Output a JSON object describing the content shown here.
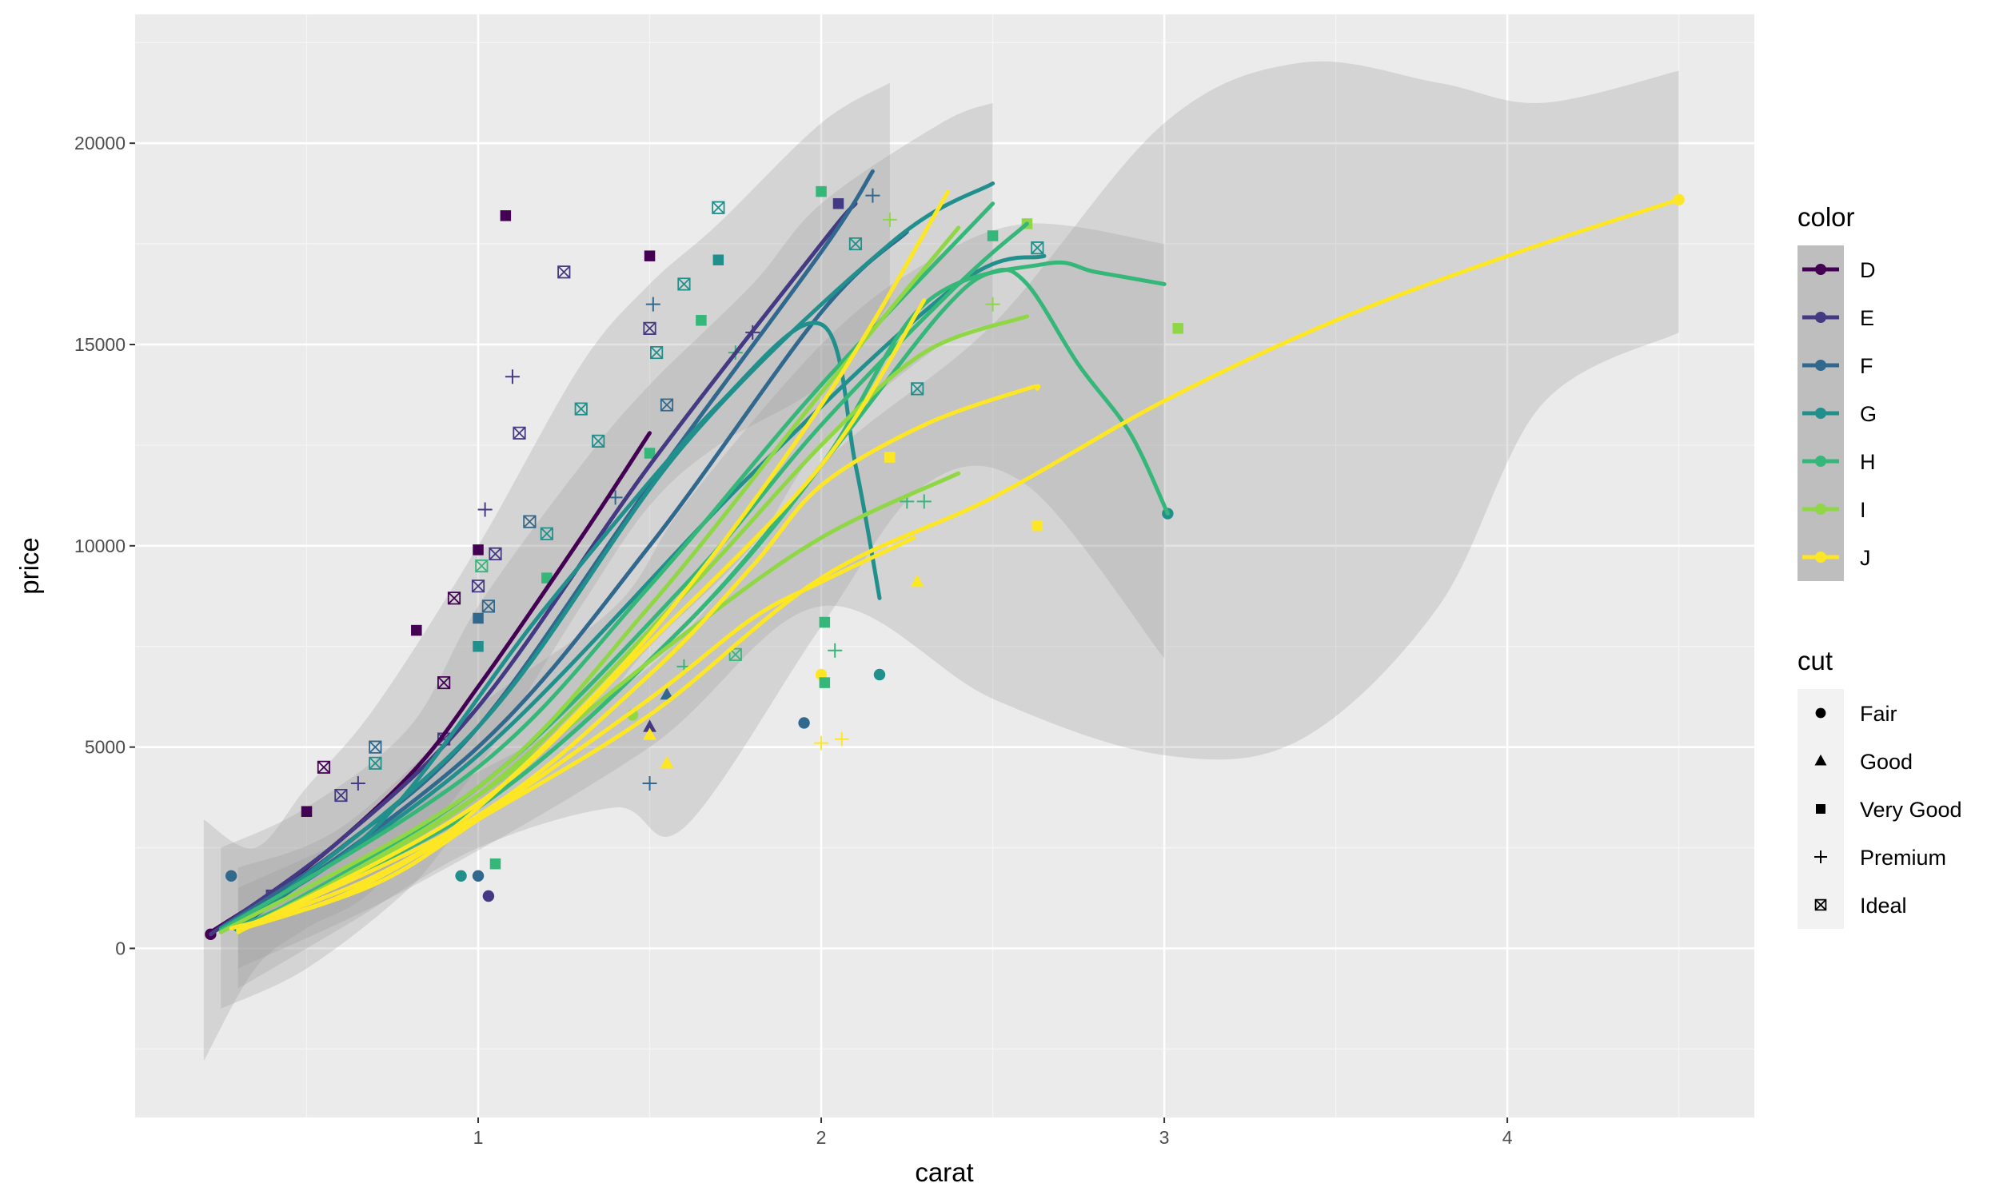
{
  "chart_data": {
    "type": "scatter",
    "title": "",
    "xlabel": "carat",
    "ylabel": "price",
    "xlim": [
      0.0,
      4.72
    ],
    "ylim": [
      -4200,
      23200
    ],
    "x_ticks": [
      1,
      2,
      3,
      4
    ],
    "y_ticks": [
      0,
      5000,
      10000,
      15000,
      20000
    ],
    "x_tick_labels": [
      "1",
      "2",
      "3",
      "4"
    ],
    "y_tick_labels": [
      "0",
      "5000",
      "10000",
      "15000",
      "20000"
    ],
    "grid": true,
    "legend_placement": "right",
    "legends": {
      "color": {
        "title": "color",
        "entries": [
          {
            "label": "D",
            "color": "#440154"
          },
          {
            "label": "E",
            "color": "#443A83"
          },
          {
            "label": "F",
            "color": "#31688E"
          },
          {
            "label": "G",
            "color": "#21908C"
          },
          {
            "label": "H",
            "color": "#35B779"
          },
          {
            "label": "I",
            "color": "#8FD744"
          },
          {
            "label": "J",
            "color": "#FDE725"
          }
        ]
      },
      "cut": {
        "title": "cut",
        "entries": [
          {
            "label": "Fair",
            "shape": "circle"
          },
          {
            "label": "Good",
            "shape": "triangle"
          },
          {
            "label": "Very Good",
            "shape": "square"
          },
          {
            "label": "Premium",
            "shape": "plus"
          },
          {
            "label": "Ideal",
            "shape": "boxcross"
          }
        ]
      }
    },
    "ribbons": [
      {
        "x": [
          0.2,
          0.35,
          0.5,
          0.7,
          1.0,
          1.3,
          1.5,
          1.7,
          2.0,
          2.2
        ],
        "ymin": [
          -2800,
          -500,
          500,
          1500,
          4500,
          8500,
          11000,
          12500,
          14000,
          16000
        ],
        "ymax": [
          3200,
          2500,
          4000,
          6000,
          10000,
          14500,
          16500,
          18000,
          20500,
          21500
        ]
      },
      {
        "x": [
          0.25,
          0.5,
          0.8,
          1.0,
          1.3,
          1.5,
          1.8,
          2.0,
          2.35,
          2.5
        ],
        "ymin": [
          -1500,
          -500,
          1500,
          3500,
          5500,
          7500,
          10000,
          12500,
          15000,
          15500
        ],
        "ymax": [
          2500,
          3500,
          5500,
          8500,
          12000,
          14000,
          16500,
          18500,
          20500,
          21000
        ]
      },
      {
        "x": [
          0.3,
          0.6,
          1.0,
          1.4,
          1.6,
          2.0,
          2.3,
          2.6,
          3.0
        ],
        "ymin": [
          -1000,
          500,
          2500,
          3500,
          3000,
          8000,
          11500,
          11500,
          7200
        ],
        "ymax": [
          2000,
          3000,
          6000,
          8500,
          11000,
          15000,
          17000,
          18000,
          17500
        ]
      },
      {
        "x": [
          0.3,
          0.8,
          1.5,
          2.0,
          2.5,
          3.0,
          3.4,
          3.8,
          4.1,
          4.5
        ],
        "ymin": [
          -500,
          1500,
          5000,
          8500,
          6200,
          4800,
          5200,
          8500,
          13500,
          15300
        ],
        "ymax": [
          1500,
          3500,
          7000,
          12000,
          15500,
          20500,
          22000,
          21500,
          21000,
          21800
        ]
      }
    ],
    "series": [
      {
        "color": "D",
        "smooth": [
          [
            0.22,
            400
          ],
          [
            0.5,
            2000
          ],
          [
            0.8,
            4300
          ],
          [
            1.0,
            6500
          ],
          [
            1.3,
            10200
          ],
          [
            1.5,
            12800
          ]
        ]
      },
      {
        "color": "E",
        "smooth": [
          [
            0.22,
            350
          ],
          [
            0.6,
            2700
          ],
          [
            1.0,
            6000
          ],
          [
            1.5,
            12000
          ],
          [
            2.0,
            17500
          ],
          [
            2.1,
            18500
          ]
        ]
      },
      {
        "color": "F",
        "smooth": [
          [
            0.25,
            500
          ],
          [
            0.6,
            2500
          ],
          [
            1.0,
            5500
          ],
          [
            1.5,
            11500
          ],
          [
            2.0,
            17300
          ],
          [
            2.15,
            19300
          ]
        ]
      },
      {
        "color": "F",
        "smooth": [
          [
            0.3,
            500
          ],
          [
            1.0,
            5000
          ],
          [
            1.5,
            10000
          ],
          [
            2.0,
            15800
          ],
          [
            2.25,
            17800
          ]
        ]
      },
      {
        "color": "G",
        "smooth": [
          [
            0.25,
            500
          ],
          [
            0.7,
            3000
          ],
          [
            1.2,
            8500
          ],
          [
            1.7,
            13500
          ],
          [
            2.0,
            15500
          ],
          [
            2.1,
            12000
          ],
          [
            2.17,
            8700
          ]
        ]
      },
      {
        "color": "G",
        "smooth": [
          [
            0.3,
            500
          ],
          [
            1.0,
            5500
          ],
          [
            1.6,
            12500
          ],
          [
            2.2,
            17500
          ],
          [
            2.5,
            19000
          ]
        ]
      },
      {
        "color": "G",
        "smooth": [
          [
            0.3,
            600
          ],
          [
            1.0,
            4800
          ],
          [
            1.8,
            11800
          ],
          [
            2.4,
            16500
          ],
          [
            2.65,
            17200
          ]
        ]
      },
      {
        "color": "H",
        "smooth": [
          [
            0.25,
            450
          ],
          [
            1.0,
            4500
          ],
          [
            1.5,
            9000
          ],
          [
            2.0,
            14000
          ],
          [
            2.5,
            18500
          ]
        ]
      },
      {
        "color": "H",
        "smooth": [
          [
            0.3,
            400
          ],
          [
            1.0,
            4000
          ],
          [
            1.6,
            9000
          ],
          [
            2.0,
            13000
          ],
          [
            2.4,
            16500
          ],
          [
            2.6,
            18000
          ]
        ]
      },
      {
        "color": "H",
        "smooth": [
          [
            0.3,
            500
          ],
          [
            1.0,
            3500
          ],
          [
            1.6,
            8000
          ],
          [
            2.0,
            12000
          ],
          [
            2.3,
            16000
          ],
          [
            2.65,
            17000
          ],
          [
            2.8,
            16800
          ],
          [
            3.0,
            16500
          ]
        ]
      },
      {
        "color": "H",
        "smooth": [
          [
            0.3,
            500
          ],
          [
            1.0,
            3500
          ],
          [
            1.6,
            8000
          ],
          [
            2.0,
            12000
          ],
          [
            2.35,
            15800
          ],
          [
            2.5,
            16800
          ],
          [
            2.6,
            16500
          ],
          [
            2.75,
            14500
          ],
          [
            2.9,
            12800
          ],
          [
            3.01,
            10800
          ]
        ]
      },
      {
        "color": "I",
        "smooth": [
          [
            0.25,
            400
          ],
          [
            1.0,
            4000
          ],
          [
            1.5,
            8500
          ],
          [
            2.0,
            13800
          ],
          [
            2.4,
            17900
          ]
        ]
      },
      {
        "color": "I",
        "smooth": [
          [
            0.3,
            400
          ],
          [
            1.0,
            3800
          ],
          [
            1.6,
            8800
          ],
          [
            2.0,
            12500
          ],
          [
            2.3,
            14800
          ],
          [
            2.6,
            15700
          ]
        ]
      },
      {
        "color": "I",
        "smooth": [
          [
            0.4,
            800
          ],
          [
            1.0,
            3800
          ],
          [
            1.6,
            7800
          ],
          [
            2.0,
            10200
          ],
          [
            2.4,
            11800
          ]
        ]
      },
      {
        "color": "J",
        "smooth": [
          [
            0.3,
            500
          ],
          [
            0.7,
            1800
          ],
          [
            1.0,
            3500
          ],
          [
            1.5,
            7800
          ],
          [
            2.0,
            13500
          ],
          [
            2.37,
            18800
          ]
        ]
      },
      {
        "color": "J",
        "smooth": [
          [
            0.3,
            400
          ],
          [
            1.0,
            3600
          ],
          [
            1.5,
            7600
          ],
          [
            2.0,
            12000
          ],
          [
            2.3,
            16100
          ]
        ]
      },
      {
        "color": "J",
        "smooth": [
          [
            0.3,
            450
          ],
          [
            1.0,
            3300
          ],
          [
            1.5,
            6800
          ],
          [
            1.8,
            9500
          ],
          [
            2.0,
            11500
          ],
          [
            2.3,
            13000
          ],
          [
            2.6,
            13900
          ],
          [
            2.63,
            13900
          ]
        ]
      },
      {
        "color": "J",
        "smooth": [
          [
            0.3,
            450
          ],
          [
            0.7,
            1600
          ],
          [
            1.0,
            3200
          ],
          [
            1.5,
            6200
          ],
          [
            1.8,
            8200
          ],
          [
            2.0,
            9100
          ],
          [
            2.27,
            10200
          ]
        ]
      },
      {
        "color": "J",
        "smooth": [
          [
            0.28,
            500
          ],
          [
            0.6,
            1300
          ],
          [
            1.0,
            3200
          ],
          [
            1.5,
            5800
          ],
          [
            2.0,
            9200
          ],
          [
            2.5,
            11200
          ],
          [
            3.0,
            13600
          ],
          [
            3.5,
            15600
          ],
          [
            4.0,
            17200
          ],
          [
            4.5,
            18600
          ]
        ]
      }
    ],
    "points": [
      [
        0.22,
        350,
        "D",
        "circle"
      ],
      [
        0.28,
        1800,
        "F",
        "circle"
      ],
      [
        0.3,
        550,
        "G",
        "circle"
      ],
      [
        0.4,
        1300,
        "E",
        "boxcross"
      ],
      [
        0.5,
        3400,
        "D",
        "square"
      ],
      [
        0.55,
        4500,
        "D",
        "boxcross"
      ],
      [
        0.6,
        3800,
        "E",
        "boxcross"
      ],
      [
        0.65,
        4100,
        "E",
        "plus"
      ],
      [
        0.7,
        5000,
        "F",
        "boxcross"
      ],
      [
        0.7,
        4600,
        "G",
        "boxcross"
      ],
      [
        0.82,
        7900,
        "D",
        "square"
      ],
      [
        0.9,
        6600,
        "D",
        "boxcross"
      ],
      [
        0.9,
        5200,
        "E",
        "boxcross"
      ],
      [
        0.93,
        8700,
        "D",
        "boxcross"
      ],
      [
        1.0,
        9900,
        "D",
        "square"
      ],
      [
        1.0,
        9000,
        "E",
        "boxcross"
      ],
      [
        1.0,
        8200,
        "F",
        "square"
      ],
      [
        1.0,
        7500,
        "G",
        "square"
      ],
      [
        1.01,
        9500,
        "H",
        "boxcross"
      ],
      [
        1.02,
        10900,
        "E",
        "plus"
      ],
      [
        1.03,
        8500,
        "F",
        "boxcross"
      ],
      [
        1.05,
        9800,
        "E",
        "boxcross"
      ],
      [
        1.08,
        18200,
        "D",
        "square"
      ],
      [
        1.1,
        14200,
        "E",
        "plus"
      ],
      [
        1.12,
        12800,
        "E",
        "boxcross"
      ],
      [
        1.15,
        10600,
        "F",
        "boxcross"
      ],
      [
        1.2,
        10300,
        "G",
        "boxcross"
      ],
      [
        1.25,
        16800,
        "E",
        "boxcross"
      ],
      [
        1.2,
        9200,
        "H",
        "square"
      ],
      [
        1.3,
        13400,
        "G",
        "boxcross"
      ],
      [
        1.35,
        12600,
        "G",
        "boxcross"
      ],
      [
        1.4,
        11200,
        "F",
        "plus"
      ],
      [
        1.5,
        17200,
        "D",
        "square"
      ],
      [
        1.5,
        15400,
        "E",
        "boxcross"
      ],
      [
        1.51,
        16000,
        "F",
        "plus"
      ],
      [
        1.52,
        14800,
        "G",
        "boxcross"
      ],
      [
        1.55,
        13500,
        "F",
        "boxcross"
      ],
      [
        1.5,
        12300,
        "H",
        "square"
      ],
      [
        1.6,
        16500,
        "G",
        "boxcross"
      ],
      [
        1.7,
        18400,
        "G",
        "boxcross"
      ],
      [
        1.65,
        15600,
        "H",
        "square"
      ],
      [
        1.7,
        17100,
        "G",
        "square"
      ],
      [
        1.75,
        14800,
        "H",
        "plus"
      ],
      [
        1.8,
        15300,
        "E",
        "plus"
      ],
      [
        1.5,
        4100,
        "F",
        "plus"
      ],
      [
        1.5,
        5500,
        "E",
        "triangle"
      ],
      [
        1.45,
        5800,
        "I",
        "circle"
      ],
      [
        1.55,
        6300,
        "F",
        "triangle"
      ],
      [
        1.5,
        5300,
        "J",
        "triangle"
      ],
      [
        1.55,
        4600,
        "J",
        "triangle"
      ],
      [
        1.6,
        7000,
        "H",
        "plus"
      ],
      [
        1.75,
        7300,
        "H",
        "boxcross"
      ],
      [
        1.0,
        1800,
        "F",
        "circle"
      ],
      [
        1.03,
        1300,
        "E",
        "circle"
      ],
      [
        0.95,
        1800,
        "G",
        "circle"
      ],
      [
        1.05,
        2100,
        "H",
        "square"
      ],
      [
        1.95,
        5600,
        "F",
        "circle"
      ],
      [
        2.0,
        6800,
        "J",
        "circle"
      ],
      [
        2.01,
        8100,
        "H",
        "square"
      ],
      [
        2.01,
        6600,
        "H",
        "square"
      ],
      [
        2.0,
        5100,
        "J",
        "plus"
      ],
      [
        2.06,
        5200,
        "J",
        "plus"
      ],
      [
        2.04,
        7400,
        "H",
        "plus"
      ],
      [
        2.17,
        6800,
        "G",
        "circle"
      ],
      [
        2.0,
        18800,
        "H",
        "square"
      ],
      [
        2.05,
        18500,
        "E",
        "square"
      ],
      [
        2.15,
        18700,
        "F",
        "plus"
      ],
      [
        2.1,
        17500,
        "G",
        "boxcross"
      ],
      [
        2.2,
        18100,
        "I",
        "plus"
      ],
      [
        2.28,
        9100,
        "J",
        "triangle"
      ],
      [
        2.25,
        11100,
        "H",
        "plus"
      ],
      [
        2.3,
        11100,
        "H",
        "plus"
      ],
      [
        2.2,
        12200,
        "J",
        "square"
      ],
      [
        2.28,
        13900,
        "G",
        "boxcross"
      ],
      [
        2.5,
        16000,
        "I",
        "plus"
      ],
      [
        2.5,
        17700,
        "H",
        "square"
      ],
      [
        2.6,
        18000,
        "I",
        "square"
      ],
      [
        2.63,
        17400,
        "G",
        "boxcross"
      ],
      [
        2.63,
        10500,
        "J",
        "square"
      ],
      [
        3.01,
        10800,
        "G",
        "circle"
      ],
      [
        3.04,
        15400,
        "I",
        "square"
      ],
      [
        4.5,
        18600,
        "J",
        "circle"
      ]
    ]
  }
}
